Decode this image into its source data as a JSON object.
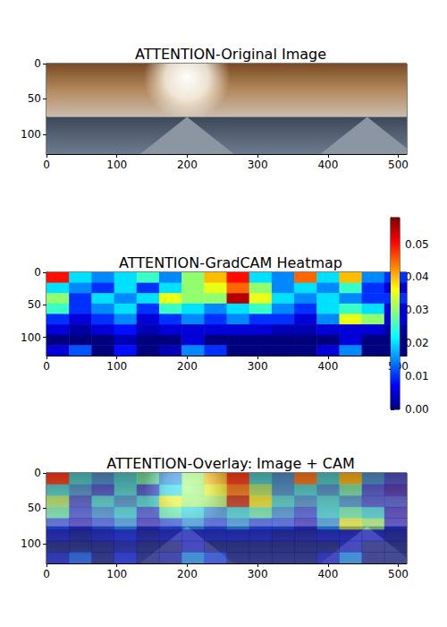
{
  "chart_data": [
    {
      "type": "image",
      "title": "ATTENTION-Original Image",
      "xlim": [
        0,
        512
      ],
      "ylim": [
        128,
        0
      ],
      "xticks": [
        0,
        100,
        200,
        300,
        400,
        500
      ],
      "yticks": [
        0,
        50,
        100
      ]
    },
    {
      "type": "heatmap",
      "title": "ATTENTION-GradCAM Heatmap",
      "xlim": [
        0,
        512
      ],
      "ylim": [
        128,
        0
      ],
      "xticks": [
        0,
        100,
        200,
        300,
        400,
        500
      ],
      "yticks": [
        0,
        50,
        100
      ],
      "cells": [
        [
          0.05,
          0.02,
          0.015,
          0.02,
          0.025,
          0.015,
          0.03,
          0.04,
          0.05,
          0.02,
          0.015,
          0.045,
          0.02,
          0.04,
          0.015,
          0.01
        ],
        [
          0.02,
          0.015,
          0.01,
          0.02,
          0.01,
          0.02,
          0.03,
          0.035,
          0.045,
          0.03,
          0.015,
          0.02,
          0.015,
          0.025,
          0.01,
          0.005
        ],
        [
          0.03,
          0.01,
          0.02,
          0.015,
          0.02,
          0.035,
          0.03,
          0.03,
          0.055,
          0.035,
          0.02,
          0.015,
          0.02,
          0.015,
          0.01,
          0.01
        ],
        [
          0.025,
          0.01,
          0.015,
          0.02,
          0.01,
          0.025,
          0.02,
          0.015,
          0.02,
          0.025,
          0.015,
          0.01,
          0.02,
          0.025,
          0.02,
          0.005
        ],
        [
          0.01,
          0.005,
          0.01,
          0.015,
          0.005,
          0.01,
          0.015,
          0.01,
          0.015,
          0.01,
          0.01,
          0.005,
          0.015,
          0.035,
          0.03,
          0.005
        ],
        [
          0.005,
          0.002,
          0.005,
          0.008,
          0.003,
          0.005,
          0.005,
          0.005,
          0.005,
          0.005,
          0.003,
          0.003,
          0.005,
          0.005,
          0.005,
          0.002
        ],
        [
          0,
          0,
          0,
          0.003,
          0,
          0,
          0.005,
          0,
          0,
          0,
          0,
          0,
          0,
          0.005,
          0,
          0
        ],
        [
          0.005,
          0.012,
          0,
          0.008,
          0,
          0.003,
          0.015,
          0.01,
          0,
          0,
          0,
          0,
          0.005,
          0.015,
          0,
          0
        ]
      ],
      "colorbar": {
        "range": [
          0,
          0.058
        ],
        "ticks": [
          {
            "value": 0,
            "label": "0.00"
          },
          {
            "value": 0.01,
            "label": "0.01"
          },
          {
            "value": 0.02,
            "label": "0.02"
          },
          {
            "value": 0.03,
            "label": "0.03"
          },
          {
            "value": 0.04,
            "label": "0.04"
          },
          {
            "value": 0.05,
            "label": "0.05"
          }
        ]
      }
    },
    {
      "type": "overlay",
      "title": "ATTENTION-Overlay: Image + CAM",
      "xlim": [
        0,
        512
      ],
      "ylim": [
        128,
        0
      ],
      "xticks": [
        0,
        100,
        200,
        300,
        400,
        500
      ],
      "yticks": [
        0,
        50,
        100
      ]
    }
  ]
}
